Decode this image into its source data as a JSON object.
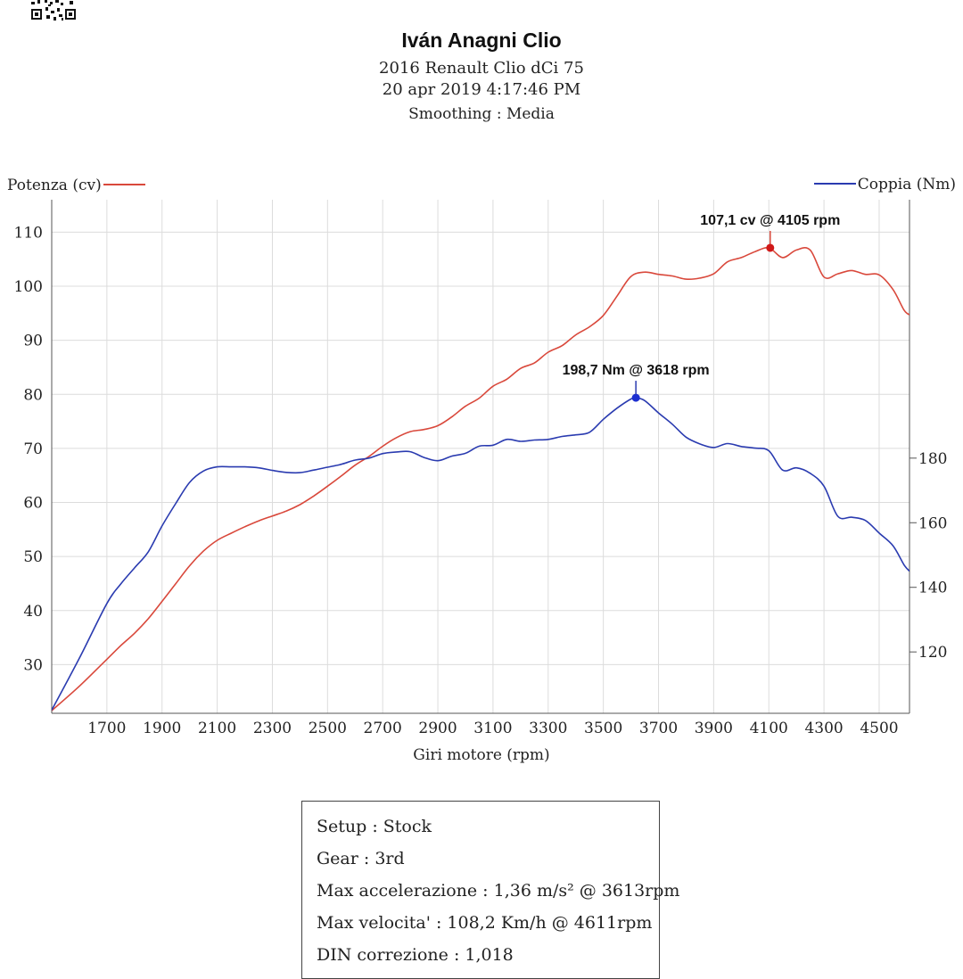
{
  "header": {
    "title": "Iván Anagni Clio",
    "car": "2016 Renault Clio dCi 75",
    "date": "20 apr 2019 4:17:46 PM",
    "smoothing": "Smoothing : Media"
  },
  "chart_data": {
    "type": "line",
    "xlabel": "Giri motore (rpm)",
    "xlim": [
      1500,
      4610
    ],
    "x_ticks": [
      1700,
      1900,
      2100,
      2300,
      2500,
      2700,
      2900,
      3100,
      3300,
      3500,
      3700,
      3900,
      4100,
      4300,
      4500
    ],
    "y_left": {
      "label": "Potenza (cv)",
      "lim": [
        21,
        116
      ],
      "ticks": [
        30,
        40,
        50,
        60,
        70,
        80,
        90,
        100,
        110
      ],
      "color": "#d9483b"
    },
    "y_right": {
      "label": "Coppia (Nm)",
      "lim": [
        101,
        260
      ],
      "ticks": [
        120,
        140,
        160,
        180
      ],
      "color": "#2a3bb0"
    },
    "grid": true,
    "legend": {
      "left": "Potenza (cv)",
      "right": "Coppia (Nm)"
    },
    "series": [
      {
        "name": "Potenza (cv)",
        "axis": "left",
        "color": "#d9483b",
        "x": [
          1500,
          1600,
          1700,
          1750,
          1800,
          1850,
          1900,
          1950,
          2000,
          2050,
          2100,
          2150,
          2200,
          2250,
          2300,
          2350,
          2400,
          2450,
          2500,
          2550,
          2600,
          2650,
          2700,
          2750,
          2800,
          2850,
          2900,
          2950,
          3000,
          3050,
          3100,
          3150,
          3200,
          3250,
          3300,
          3350,
          3400,
          3450,
          3500,
          3550,
          3600,
          3650,
          3700,
          3750,
          3800,
          3850,
          3900,
          3950,
          4000,
          4050,
          4100,
          4150,
          4200,
          4250,
          4300,
          4350,
          4400,
          4450,
          4500,
          4550,
          4590,
          4610
        ],
        "y": [
          21.5,
          26,
          31,
          33.5,
          35.8,
          38.5,
          41.7,
          45,
          48.3,
          51,
          53,
          54.3,
          55.5,
          56.6,
          57.5,
          58.4,
          59.6,
          61.2,
          63,
          64.9,
          66.9,
          68.5,
          70.4,
          72,
          73.1,
          73.5,
          74.2,
          75.8,
          77.8,
          79.3,
          81.5,
          82.8,
          84.8,
          85.8,
          87.8,
          89,
          91,
          92.5,
          94.6,
          98.2,
          101.8,
          102.6,
          102.2,
          101.9,
          101.3,
          101.5,
          102.3,
          104.5,
          105.3,
          106.4,
          107.1,
          105.3,
          106.7,
          106.7,
          101.7,
          102.3,
          102.9,
          102.2,
          102.1,
          99.4,
          95.6,
          94.7
        ]
      },
      {
        "name": "Coppia (Nm)",
        "axis": "right",
        "color": "#2a3bb0",
        "x": [
          1500,
          1600,
          1700,
          1750,
          1800,
          1850,
          1900,
          1950,
          2000,
          2050,
          2100,
          2150,
          2200,
          2250,
          2300,
          2350,
          2400,
          2450,
          2500,
          2550,
          2600,
          2650,
          2700,
          2750,
          2800,
          2850,
          2900,
          2950,
          3000,
          3050,
          3100,
          3150,
          3200,
          3250,
          3300,
          3350,
          3400,
          3450,
          3500,
          3550,
          3600,
          3618,
          3650,
          3700,
          3750,
          3800,
          3850,
          3900,
          3950,
          4000,
          4050,
          4100,
          4150,
          4200,
          4250,
          4300,
          4350,
          4400,
          4450,
          4500,
          4550,
          4590,
          4610
        ],
        "y": [
          102,
          118,
          135,
          141,
          146,
          151,
          159,
          166,
          172.5,
          176,
          177.3,
          177.3,
          177.3,
          177,
          176.2,
          175.6,
          175.5,
          176.3,
          177.2,
          178.1,
          179.4,
          180,
          181.4,
          181.9,
          182,
          180.2,
          179.2,
          180.6,
          181.5,
          183.7,
          184,
          185.8,
          185.2,
          185.6,
          185.8,
          186.7,
          187.2,
          188,
          192,
          195.5,
          198.3,
          198.7,
          197.8,
          194,
          190.5,
          186.5,
          184.4,
          183.3,
          184.5,
          183.6,
          183.1,
          182.3,
          176.3,
          177,
          175.3,
          171.3,
          162,
          161.7,
          160.7,
          156.8,
          152.9,
          147,
          145
        ]
      }
    ],
    "annotations": [
      {
        "series": "Potenza (cv)",
        "x": 4105,
        "y": 107.1,
        "text": "107,1 cv @ 4105 rpm"
      },
      {
        "series": "Coppia (Nm)",
        "x": 3618,
        "y": 198.7,
        "text": "198,7 Nm @ 3618 rpm"
      }
    ]
  },
  "info_box": {
    "setup": "Setup : Stock",
    "gear": "Gear : 3rd",
    "max_acc": "Max accelerazione : 1,36 m/s² @ 3613rpm",
    "max_vel": "Max velocita' : 108,2 Km/h @ 4611rpm",
    "din": "DIN correzione : 1,018"
  }
}
